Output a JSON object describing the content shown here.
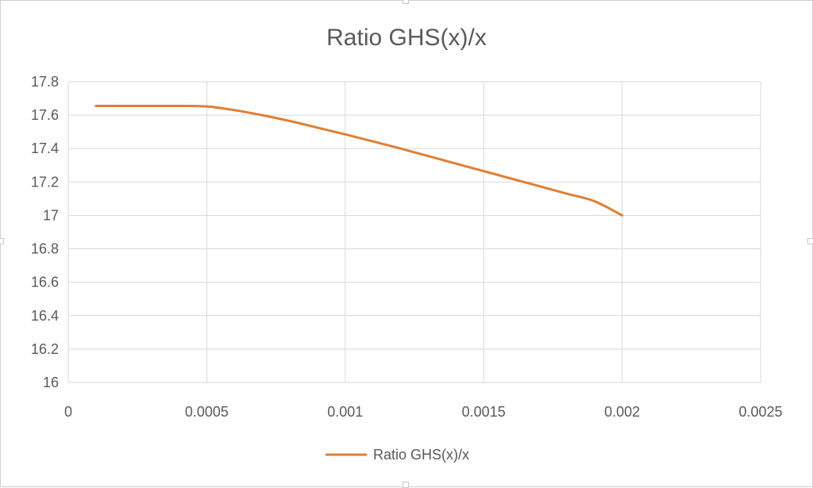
{
  "chart_data": {
    "type": "line",
    "title": "Ratio GHS(x)/x",
    "xlabel": "",
    "ylabel": "",
    "xlim": [
      0,
      0.0025
    ],
    "ylim": [
      16,
      17.8
    ],
    "x_ticks": [
      "0",
      "0.0005",
      "0.001",
      "0.0015",
      "0.002",
      "0.0025"
    ],
    "y_ticks": [
      "16",
      "16.2",
      "16.4",
      "16.6",
      "16.8",
      "17",
      "17.2",
      "17.4",
      "17.6",
      "17.8"
    ],
    "grid": true,
    "legend_position": "bottom",
    "series": [
      {
        "name": "Ratio GHS(x)/x",
        "color": "#e07f35",
        "x": [
          0.0001,
          0.0002,
          0.0003,
          0.0004,
          0.0005,
          0.0006,
          0.0007,
          0.0008,
          0.0009,
          0.001,
          0.0011,
          0.0012,
          0.0013,
          0.0014,
          0.0015,
          0.0016,
          0.0017,
          0.0018,
          0.0019,
          0.002
        ],
        "y": [
          17.655,
          17.655,
          17.655,
          17.655,
          17.652,
          17.63,
          17.6,
          17.565,
          17.525,
          17.485,
          17.443,
          17.4,
          17.355,
          17.31,
          17.265,
          17.22,
          17.175,
          17.13,
          17.085,
          17.0
        ]
      }
    ]
  }
}
